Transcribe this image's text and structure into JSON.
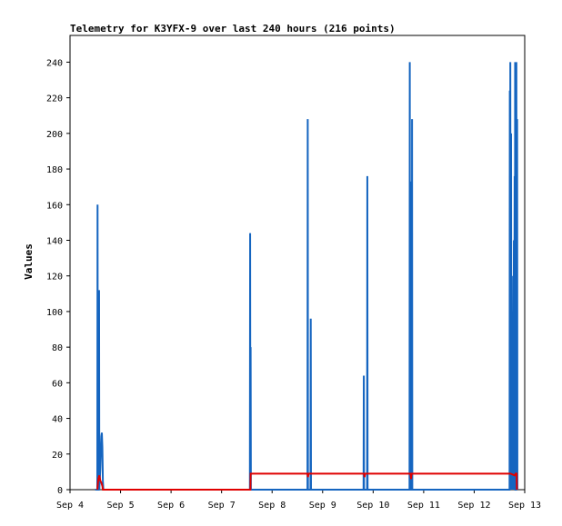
{
  "chart_data": {
    "type": "line",
    "title": "Telemetry for K3YFX-9 over last 240 hours (216 points)",
    "ylabel": "Values",
    "xlabel": "",
    "x_tick_labels": [
      "Sep 4",
      "Sep 5",
      "Sep 6",
      "Sep 7",
      "Sep 8",
      "Sep 9",
      "Sep 10",
      "Sep 11",
      "Sep 12",
      "Sep 13"
    ],
    "xlim": [
      4.0,
      13.0
    ],
    "ylim": [
      0,
      255
    ],
    "y_ticks": [
      0,
      20,
      40,
      60,
      80,
      100,
      120,
      140,
      160,
      180,
      200,
      220,
      240
    ],
    "grid": false,
    "legend": "none",
    "series": [
      {
        "color": "#1565c0",
        "points": [
          [
            4.5,
            0
          ],
          [
            4.54,
            0
          ],
          [
            4.545,
            160
          ],
          [
            4.55,
            0
          ],
          [
            4.57,
            0
          ],
          [
            4.575,
            112
          ],
          [
            4.58,
            0
          ],
          [
            4.6,
            12
          ],
          [
            4.61,
            22
          ],
          [
            4.62,
            30
          ],
          [
            4.63,
            32
          ],
          [
            4.64,
            24
          ],
          [
            4.65,
            5
          ],
          [
            4.66,
            0
          ],
          [
            7.56,
            0
          ],
          [
            7.565,
            144
          ],
          [
            7.57,
            0
          ],
          [
            7.575,
            80
          ],
          [
            7.58,
            0
          ],
          [
            8.7,
            0
          ],
          [
            8.705,
            208
          ],
          [
            8.71,
            0
          ],
          [
            8.76,
            0
          ],
          [
            8.765,
            96
          ],
          [
            8.77,
            0
          ],
          [
            9.81,
            0
          ],
          [
            9.815,
            64
          ],
          [
            9.82,
            0
          ],
          [
            9.88,
            0
          ],
          [
            9.885,
            176
          ],
          [
            9.89,
            0
          ],
          [
            10.72,
            0
          ],
          [
            10.725,
            240
          ],
          [
            10.73,
            0
          ],
          [
            10.745,
            35
          ],
          [
            10.75,
            173
          ],
          [
            10.755,
            0
          ],
          [
            10.765,
            0
          ],
          [
            10.77,
            208
          ],
          [
            10.775,
            0
          ],
          [
            12.7,
            0
          ],
          [
            12.705,
            224
          ],
          [
            12.71,
            0
          ],
          [
            12.715,
            240
          ],
          [
            12.72,
            0
          ],
          [
            12.73,
            200
          ],
          [
            12.735,
            0
          ],
          [
            12.745,
            120
          ],
          [
            12.75,
            0
          ],
          [
            12.76,
            100
          ],
          [
            12.765,
            20
          ],
          [
            12.77,
            60
          ],
          [
            12.775,
            0
          ],
          [
            12.785,
            140
          ],
          [
            12.79,
            0
          ],
          [
            12.8,
            176
          ],
          [
            12.805,
            0
          ],
          [
            12.81,
            240
          ],
          [
            12.815,
            0
          ],
          [
            12.83,
            0
          ],
          [
            12.835,
            240
          ],
          [
            12.84,
            0
          ],
          [
            12.85,
            208
          ],
          [
            12.855,
            0
          ]
        ]
      },
      {
        "color": "#e00000",
        "points": [
          [
            4.54,
            0
          ],
          [
            4.56,
            6
          ],
          [
            4.58,
            8
          ],
          [
            4.6,
            5
          ],
          [
            4.62,
            4
          ],
          [
            4.64,
            2
          ],
          [
            4.65,
            0
          ],
          [
            7.57,
            0
          ],
          [
            7.575,
            9
          ],
          [
            8.7,
            9
          ],
          [
            8.71,
            7
          ],
          [
            8.72,
            9
          ],
          [
            9.82,
            9
          ],
          [
            9.83,
            7
          ],
          [
            9.84,
            9
          ],
          [
            10.74,
            9
          ],
          [
            10.75,
            6
          ],
          [
            10.76,
            9
          ],
          [
            12.7,
            9
          ],
          [
            12.72,
            9
          ],
          [
            12.8,
            8
          ],
          [
            12.82,
            9
          ],
          [
            12.84,
            9
          ],
          [
            12.845,
            0
          ]
        ]
      }
    ]
  }
}
